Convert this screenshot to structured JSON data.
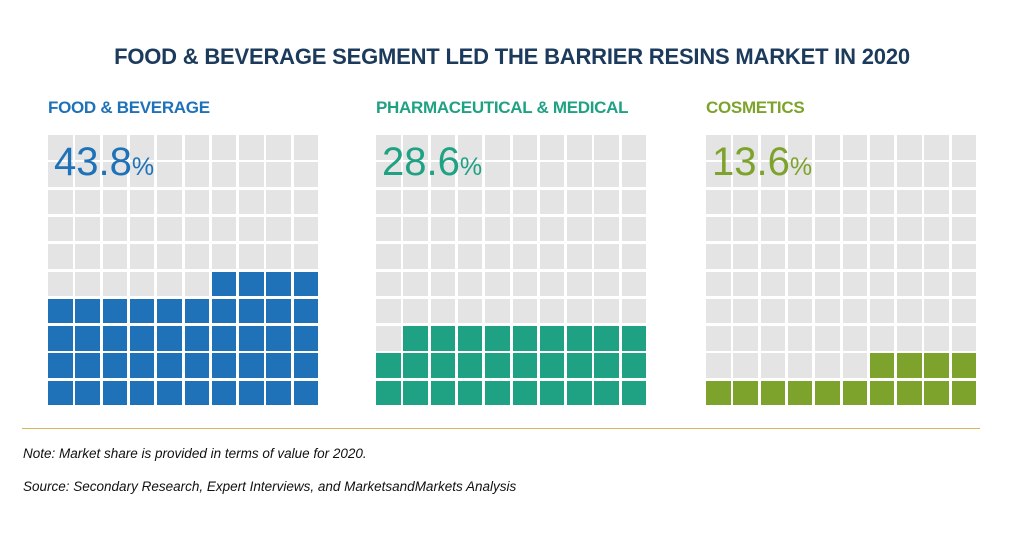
{
  "title": "FOOD & BEVERAGE SEGMENT LED THE BARRIER RESINS MARKET IN 2020",
  "note": "Note: Market share is provided in terms of value for 2020.",
  "source": "Source: Secondary Research, Expert Interviews, and MarketsandMarkets Analysis",
  "colors": {
    "grid": "#e4e4e4",
    "divider": "#d8b45a",
    "title": "#1b3a5c"
  },
  "chart_data": {
    "type": "waffle",
    "unit": "%",
    "grid": "10x10",
    "segments": [
      {
        "label": "FOOD & BEVERAGE",
        "value": 43.8,
        "value_text": "43.8",
        "color": "#1f72b8"
      },
      {
        "label": "PHARMACEUTICAL & MEDICAL",
        "value": 28.6,
        "value_text": "28.6",
        "color": "#1fa184"
      },
      {
        "label": "COSMETICS",
        "value": 13.6,
        "value_text": "13.6",
        "color": "#7ea32c"
      }
    ]
  }
}
